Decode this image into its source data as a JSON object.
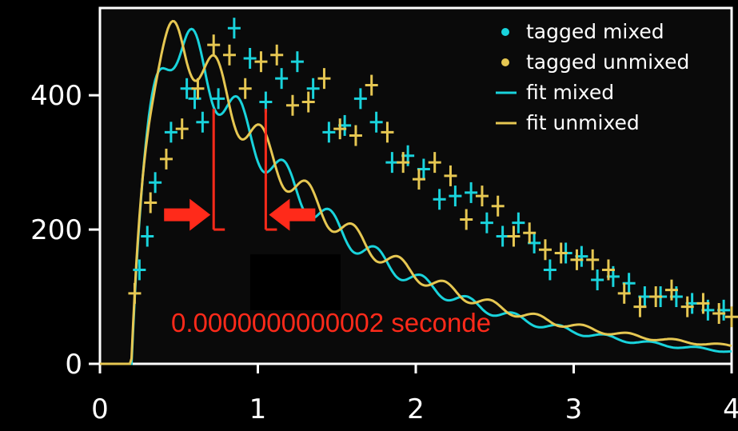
{
  "chart_data": {
    "type": "scatter",
    "title": "",
    "xlabel": "",
    "ylabel": "",
    "xlim": [
      0,
      4
    ],
    "ylim": [
      0,
      530
    ],
    "x_ticks": [
      "0",
      "1",
      "2",
      "3",
      "4"
    ],
    "y_ticks": [
      "0",
      "200",
      "400"
    ],
    "grid": false,
    "legend_position": "top-right",
    "colors": {
      "mixed": "#19d3dc",
      "unmixed": "#e6c752",
      "background": "#000000",
      "frame": "#ffffff",
      "annotation": "#ff2a1a"
    },
    "series": [
      {
        "name": "tagged mixed",
        "kind": "points",
        "color": "#19d3dc",
        "points": [
          [
            0.25,
            140
          ],
          [
            0.3,
            190
          ],
          [
            0.35,
            270
          ],
          [
            0.45,
            345
          ],
          [
            0.55,
            410
          ],
          [
            0.6,
            395
          ],
          [
            0.65,
            360
          ],
          [
            0.75,
            395
          ],
          [
            0.85,
            500
          ],
          [
            0.95,
            455
          ],
          [
            1.05,
            390
          ],
          [
            1.15,
            425
          ],
          [
            1.25,
            450
          ],
          [
            1.35,
            410
          ],
          [
            1.45,
            345
          ],
          [
            1.55,
            355
          ],
          [
            1.65,
            395
          ],
          [
            1.75,
            360
          ],
          [
            1.85,
            300
          ],
          [
            1.95,
            310
          ],
          [
            2.05,
            290
          ],
          [
            2.15,
            245
          ],
          [
            2.25,
            250
          ],
          [
            2.35,
            255
          ],
          [
            2.45,
            210
          ],
          [
            2.55,
            190
          ],
          [
            2.65,
            210
          ],
          [
            2.75,
            180
          ],
          [
            2.85,
            140
          ],
          [
            2.95,
            165
          ],
          [
            3.05,
            160
          ],
          [
            3.15,
            125
          ],
          [
            3.25,
            130
          ],
          [
            3.35,
            120
          ],
          [
            3.45,
            100
          ],
          [
            3.55,
            100
          ],
          [
            3.65,
            100
          ],
          [
            3.75,
            90
          ],
          [
            3.85,
            80
          ],
          [
            3.95,
            80
          ]
        ]
      },
      {
        "name": "tagged unmixed",
        "kind": "points",
        "color": "#e6c752",
        "points": [
          [
            0.22,
            105
          ],
          [
            0.32,
            240
          ],
          [
            0.42,
            305
          ],
          [
            0.52,
            350
          ],
          [
            0.62,
            410
          ],
          [
            0.72,
            475
          ],
          [
            0.82,
            460
          ],
          [
            0.92,
            410
          ],
          [
            1.02,
            450
          ],
          [
            1.12,
            460
          ],
          [
            1.22,
            385
          ],
          [
            1.32,
            390
          ],
          [
            1.42,
            425
          ],
          [
            1.52,
            350
          ],
          [
            1.62,
            340
          ],
          [
            1.72,
            415
          ],
          [
            1.82,
            345
          ],
          [
            1.92,
            300
          ],
          [
            2.02,
            275
          ],
          [
            2.12,
            300
          ],
          [
            2.22,
            280
          ],
          [
            2.32,
            215
          ],
          [
            2.42,
            250
          ],
          [
            2.52,
            235
          ],
          [
            2.62,
            190
          ],
          [
            2.72,
            195
          ],
          [
            2.82,
            170
          ],
          [
            2.92,
            165
          ],
          [
            3.02,
            155
          ],
          [
            3.12,
            155
          ],
          [
            3.22,
            140
          ],
          [
            3.32,
            105
          ],
          [
            3.42,
            85
          ],
          [
            3.52,
            100
          ],
          [
            3.62,
            110
          ],
          [
            3.72,
            85
          ],
          [
            3.82,
            90
          ],
          [
            3.92,
            75
          ],
          [
            4.0,
            70
          ]
        ]
      },
      {
        "name": "fit mixed",
        "kind": "line",
        "color": "#19d3dc"
      },
      {
        "name": "fit unmixed",
        "kind": "line",
        "color": "#e6c752"
      }
    ],
    "annotations": [
      {
        "text": "0.0000000000002 seconde",
        "color": "#ff2a1a"
      }
    ]
  }
}
